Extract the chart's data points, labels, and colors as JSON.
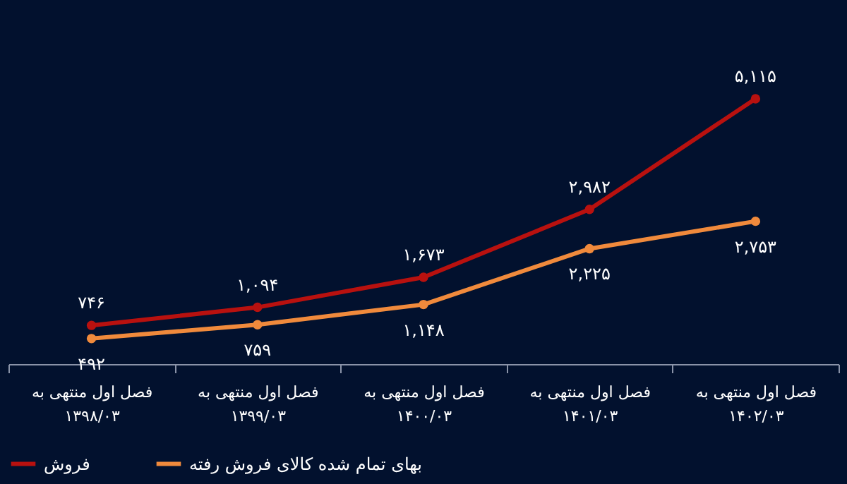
{
  "chart_data": {
    "type": "line",
    "categories": [
      "فصل اول منتهی به\n۱۳۹۸/۰۳",
      "فصل اول منتهی به\n۱۳۹۹/۰۳",
      "فصل اول منتهی به\n۱۴۰۰/۰۳",
      "فصل اول منتهی به\n۱۴۰۱/۰۳",
      "فصل اول منتهی به\n۱۴۰۲/۰۳"
    ],
    "series": [
      {
        "name": "فروش",
        "color": "#b8110f",
        "values": [
          746,
          1094,
          1673,
          2982,
          5115
        ],
        "value_labels": [
          "۷۴۶",
          "۱,۰۹۴",
          "۱,۶۷۳",
          "۲,۹۸۲",
          "۵,۱۱۵"
        ]
      },
      {
        "name": "بهای تمام شده کالای فروش رفته",
        "color": "#f08a3c",
        "values": [
          492,
          759,
          1148,
          2225,
          2753
        ],
        "value_labels": [
          "۴۹۲",
          "۷۵۹",
          "۱,۱۴۸",
          "۲,۲۲۵",
          "۲,۷۵۳"
        ]
      }
    ],
    "marker": "circle",
    "line_style": "solid",
    "legend": "bottom",
    "tick_labels": "x"
  }
}
